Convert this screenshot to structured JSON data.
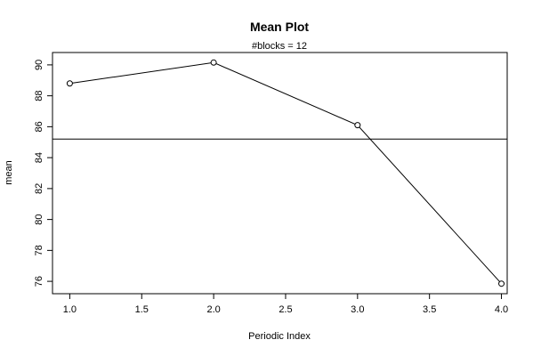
{
  "chart_data": {
    "type": "line",
    "title": "Mean Plot",
    "subtitle": "#blocks =  12",
    "xlabel": "Periodic Index",
    "ylabel": "mean",
    "x": [
      1,
      2,
      3,
      4
    ],
    "y": [
      88.8,
      90.15,
      86.1,
      75.85
    ],
    "reference_line": 85.2,
    "xlim": [
      0.88,
      4.04
    ],
    "ylim": [
      75.2,
      90.8
    ],
    "xticks": [
      1.0,
      1.5,
      2.0,
      2.5,
      3.0,
      3.5,
      4.0
    ],
    "xtick_labels": [
      "1.0",
      "1.5",
      "2.0",
      "2.5",
      "3.0",
      "3.5",
      "4.0"
    ],
    "yticks": [
      76,
      78,
      80,
      82,
      84,
      86,
      88,
      90
    ],
    "ytick_labels": [
      "76",
      "78",
      "80",
      "82",
      "84",
      "86",
      "88",
      "90"
    ],
    "grid": false,
    "markers": "open-circle"
  }
}
